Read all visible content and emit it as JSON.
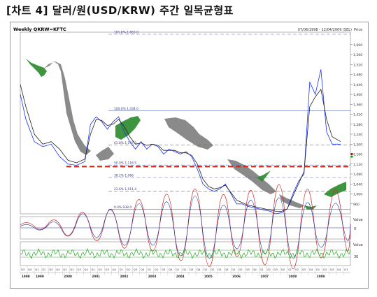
{
  "page_title": "[차트 4] 달러/원(USD/KRW) 주간 일목균형표",
  "chart_data": {
    "type": "line",
    "title": "Weekly QKRW=KFTC",
    "date_range": "07/06/1998 - 12/04/2009 (SEL)",
    "price_label": "Price",
    "y_ticks": [
      960,
      1000,
      1040,
      1080,
      1120,
      1160,
      1200,
      1240,
      1280,
      1320,
      1360,
      1400,
      1440,
      1480,
      1520,
      1560,
      1600
    ],
    "y_tick_labels": [
      "960",
      "1,000",
      "1,040",
      "1,080",
      "1,120",
      "1,160",
      "1,200",
      "1,240",
      "1,280",
      "1,320",
      "1,360",
      "1,400",
      "1,440",
      "1,480",
      "1,520",
      "1,560",
      "1,600"
    ],
    "ylim": [
      920,
      1650
    ],
    "fib_levels": [
      {
        "value": 1663,
        "label": "161.8% 1,663.0"
      },
      {
        "value": 1334,
        "label": "100.0% 1,334.0"
      },
      {
        "value": 1197,
        "label": "61.8% 1,197.3"
      },
      {
        "value": 1116,
        "label": "50.0% 1,116.5"
      },
      {
        "value": 1066,
        "label": "38.2% 1,066"
      },
      {
        "value": 1011,
        "label": "23.6% 1,011.4"
      },
      {
        "value": 938,
        "label": "0.0% 938.0"
      }
    ],
    "resistance_level": 1110,
    "x_years": [
      "1998",
      "1999",
      "2000",
      "2001",
      "2002",
      "2003",
      "2004",
      "2005",
      "2006",
      "2007",
      "2008",
      "2009"
    ],
    "x_quarters": [
      "Q3",
      "Q4",
      "Q1",
      "Q2",
      "Q3",
      "Q4",
      "Q1",
      "Q2",
      "Q3",
      "Q4",
      "Q1",
      "Q2",
      "Q3",
      "Q4",
      "Q1",
      "Q2",
      "Q3",
      "Q4",
      "Q1",
      "Q2",
      "Q3",
      "Q4",
      "Q1",
      "Q2",
      "Q3",
      "Q4",
      "Q1",
      "Q2",
      "Q3",
      "Q4",
      "Q1",
      "Q2",
      "Q3",
      "Q4",
      "Q1",
      "Q2",
      "Q3",
      "Q4",
      "Q1",
      "Q2",
      "Q3",
      "Q4",
      "Q1",
      "Q2",
      "Q3",
      "Q4",
      "Q1"
    ],
    "series": [
      {
        "color": "#1a33ff",
        "x": [
          1998.5,
          1998.7,
          1999.0,
          1999.3,
          1999.6,
          1999.9,
          2000.2,
          2000.5,
          2000.8,
          2001.0,
          2001.2,
          2001.4,
          2001.6,
          2001.8,
          2002.0,
          2002.2,
          2002.4,
          2002.6,
          2002.8,
          2003.0,
          2003.2,
          2003.4,
          2003.6,
          2003.8,
          2004.0,
          2004.2,
          2004.4,
          2004.6,
          2004.8,
          2005.0,
          2005.2,
          2005.4,
          2005.6,
          2005.8,
          2006.0,
          2006.2,
          2006.4,
          2006.6,
          2006.8,
          2007.0,
          2007.2,
          2007.4,
          2007.6,
          2007.8,
          2008.0,
          2008.2,
          2008.4,
          2008.6,
          2008.8,
          2009.0,
          2009.2,
          2009.4,
          2009.6,
          2009.9
        ],
        "values": [
          1400,
          1300,
          1210,
          1190,
          1200,
          1150,
          1120,
          1115,
          1130,
          1280,
          1310,
          1290,
          1260,
          1290,
          1310,
          1250,
          1210,
          1180,
          1210,
          1180,
          1200,
          1190,
          1160,
          1180,
          1170,
          1160,
          1170,
          1150,
          1100,
          1040,
          1020,
          1010,
          1020,
          1040,
          1000,
          960,
          960,
          950,
          945,
          940,
          935,
          930,
          920,
          925,
          940,
          1000,
          1050,
          1080,
          1450,
          1400,
          1500,
          1250,
          1200,
          1200
        ]
      },
      {
        "color": "#202020",
        "x": [
          1998.5,
          1998.7,
          1999.0,
          1999.3,
          1999.6,
          1999.9,
          2000.2,
          2000.5,
          2000.8,
          2001.0,
          2001.2,
          2001.4,
          2001.6,
          2001.8,
          2002.0,
          2002.2,
          2002.4,
          2002.6,
          2002.8,
          2003.0,
          2003.2,
          2003.4,
          2003.6,
          2003.8,
          2004.0,
          2004.2,
          2004.4,
          2004.6,
          2004.8,
          2005.0,
          2005.2,
          2005.4,
          2005.6,
          2005.8,
          2006.0,
          2006.2,
          2006.4,
          2006.6,
          2006.8,
          2007.0,
          2007.2,
          2007.4,
          2007.6,
          2007.8,
          2008.0,
          2008.2,
          2008.4,
          2008.6,
          2008.8,
          2009.0,
          2009.2,
          2009.4,
          2009.6,
          2009.9
        ],
        "values": [
          1440,
          1350,
          1240,
          1200,
          1210,
          1180,
          1135,
          1125,
          1140,
          1240,
          1300,
          1295,
          1275,
          1280,
          1300,
          1270,
          1230,
          1200,
          1205,
          1195,
          1200,
          1195,
          1175,
          1175,
          1175,
          1165,
          1165,
          1155,
          1120,
          1060,
          1030,
          1020,
          1025,
          1035,
          1005,
          975,
          965,
          955,
          950,
          945,
          940,
          935,
          930,
          930,
          940,
          990,
          1040,
          1090,
          1350,
          1390,
          1420,
          1300,
          1230,
          1210
        ]
      }
    ],
    "oscillator_1": {
      "label": "Value",
      "tick_labels": [
        "0"
      ]
    },
    "oscillator_2": {
      "label": "Value",
      "tick_labels": [
        "30"
      ]
    }
  }
}
